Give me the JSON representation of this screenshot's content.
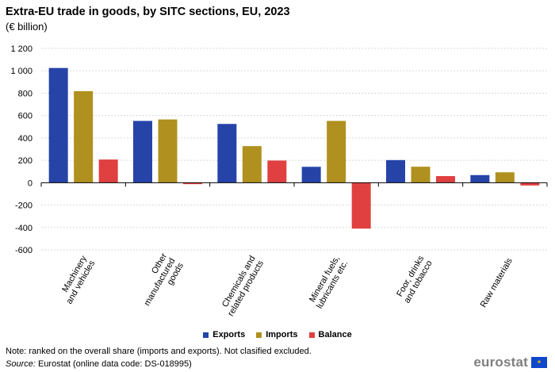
{
  "header": {
    "title": "Extra-EU trade in goods, by SITC sections, EU, 2023",
    "subtitle": "(€ billion)"
  },
  "chart_data": {
    "type": "bar",
    "title": "Extra-EU trade in goods, by SITC sections, EU, 2023",
    "ylabel": "€ billion",
    "ylim": [
      -600,
      1200
    ],
    "yticks": [
      -600,
      -400,
      -200,
      0,
      200,
      400,
      600,
      800,
      1000,
      1200
    ],
    "ytick_labels": [
      "-600",
      "-400",
      "-200",
      "0",
      "200",
      "400",
      "600",
      "800",
      "1 000",
      "1 200"
    ],
    "categories": [
      [
        "Machinery",
        "and vehicles"
      ],
      [
        "Other",
        "manufactured",
        "goods"
      ],
      [
        "Chemicals and",
        "related products"
      ],
      [
        "Mineral fuels,",
        "lubricants etc."
      ],
      [
        "Foor, drinks",
        "and tobacco"
      ],
      [
        "Raw materials"
      ]
    ],
    "series": [
      {
        "name": "Exports",
        "color": "#2644a8",
        "values": [
          1025,
          552,
          525,
          142,
          202,
          68
        ]
      },
      {
        "name": "Imports",
        "color": "#b09120",
        "values": [
          818,
          565,
          327,
          552,
          143,
          93
        ]
      },
      {
        "name": "Balance",
        "color": "#e04040",
        "values": [
          207,
          -13,
          198,
          -410,
          59,
          -25
        ]
      }
    ],
    "grid": true,
    "legend_position": "bottom"
  },
  "legend": {
    "items": [
      {
        "label": "Exports",
        "color": "#2644a8"
      },
      {
        "label": "Imports",
        "color": "#b09120"
      },
      {
        "label": "Balance",
        "color": "#e04040"
      }
    ]
  },
  "footer": {
    "note": "Note: ranked on the overall share (imports and exports). Not clasified excluded.",
    "source_label": "Source:",
    "source_text": " Eurostat (online data code: DS-018995)",
    "logo_text": "eurostat",
    "flag_icon": "eu-flag-icon"
  }
}
